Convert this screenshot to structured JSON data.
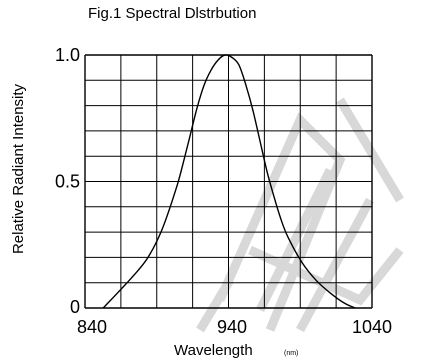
{
  "chart_data": {
    "type": "line",
    "title": "Fig.1 Spectral Dlstrbution",
    "xlabel": "Wavelength",
    "xlabel_unit": "(nm)",
    "ylabel": "Relative Radiant Intensity",
    "xlim": [
      835,
      1040
    ],
    "ylim": [
      0,
      1.0
    ],
    "x_ticks": [
      840,
      940,
      1040
    ],
    "y_ticks": [
      {
        "value": 0,
        "label": "0"
      },
      {
        "value": 0.5,
        "label": "0.5"
      },
      {
        "value": 1.0,
        "label": "1.0"
      }
    ],
    "grid": true,
    "grid_columns": 8,
    "grid_rows": 10,
    "series": [
      {
        "x": [
          848,
          860,
          870,
          880,
          890,
          900,
          905,
          910,
          915,
          920,
          925,
          930,
          935,
          940,
          945,
          950,
          955,
          960,
          965,
          970,
          975,
          980,
          990,
          1000,
          1010,
          1020,
          1028
        ],
        "y": [
          0.0,
          0.07,
          0.13,
          0.2,
          0.31,
          0.47,
          0.57,
          0.68,
          0.79,
          0.88,
          0.94,
          0.98,
          1.0,
          0.99,
          0.96,
          0.88,
          0.78,
          0.66,
          0.54,
          0.44,
          0.35,
          0.28,
          0.18,
          0.11,
          0.06,
          0.02,
          0.0
        ]
      }
    ],
    "line_color": "#000000",
    "grid_color": "#000000"
  }
}
